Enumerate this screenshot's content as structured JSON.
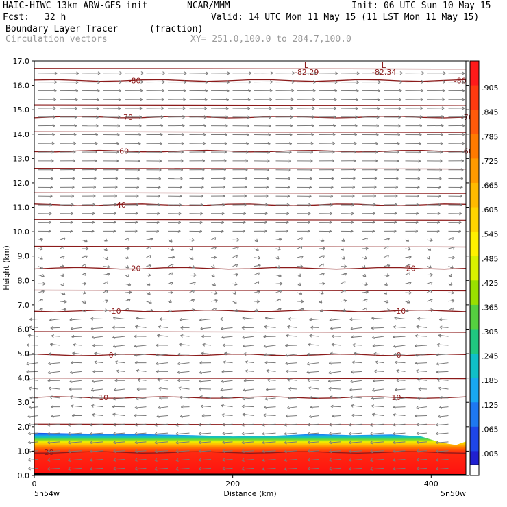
{
  "header": {
    "title_left": "HAIC-HIWC 13km ARW-GFS init",
    "org": "NCAR/MMM",
    "init": "Init: 06 UTC Sun 10 May 15",
    "fcst_label": "Fcst:",
    "fcst_value": "32 h",
    "valid": "Valid: 14 UTC Mon 11 May 15 (11 LST Mon 11 May 15)",
    "field_name": "Boundary Layer Tracer",
    "field_unit": "(fraction)",
    "vectors_label": "Circulation vectors",
    "xy_label": "XY= 251.0,100.0 to 284.7,100.0"
  },
  "chart_data": {
    "type": "area",
    "ylabel": "Height (km)",
    "xlabel": "Distance (km)",
    "ylim": [
      0,
      17
    ],
    "xlim": [
      0,
      435
    ],
    "y_ticks": [
      "0.0",
      "1.0",
      "2.0",
      "3.0",
      "4.0",
      "5.0",
      "6.0",
      "7.0",
      "8.0",
      "9.0",
      "10.0",
      "11.0",
      "12.0",
      "13.0",
      "14.0",
      "15.0",
      "16.0",
      "17.0"
    ],
    "x_ticks": [
      0,
      200,
      400
    ],
    "x_ticks_labels": [
      "0",
      "200",
      "400"
    ],
    "x_endpoints": [
      "5n54w",
      "5n50w"
    ],
    "tracer_top_km": [
      {
        "x": 0,
        "y": 1.75
      },
      {
        "x": 40,
        "y": 1.72
      },
      {
        "x": 100,
        "y": 1.7
      },
      {
        "x": 160,
        "y": 1.65
      },
      {
        "x": 200,
        "y": 1.6
      },
      {
        "x": 240,
        "y": 1.62
      },
      {
        "x": 280,
        "y": 1.7
      },
      {
        "x": 320,
        "y": 1.65
      },
      {
        "x": 360,
        "y": 1.68
      },
      {
        "x": 390,
        "y": 1.6
      },
      {
        "x": 410,
        "y": 1.35
      },
      {
        "x": 425,
        "y": 1.25
      },
      {
        "x": 435,
        "y": 1.4
      }
    ],
    "isotherms": [
      {
        "label": "20",
        "height_km": 0.95
      },
      {
        "label": "10",
        "height_km": 3.2
      },
      {
        "label": "0",
        "height_km": 4.95
      },
      {
        "label": "-10",
        "height_km": 6.75
      },
      {
        "label": "-20",
        "height_km": 8.5
      },
      {
        "label": "-40",
        "height_km": 11.1
      },
      {
        "label": "-60",
        "height_km": 13.3
      },
      {
        "label": "-70",
        "height_km": 14.7
      },
      {
        "label": "-80",
        "height_km": 16.2
      }
    ],
    "lows": [
      {
        "label": "L",
        "value": "-82.29",
        "x_km": 272
      },
      {
        "label": "L",
        "value": "-82.34",
        "x_km": 350
      }
    ],
    "colorbar": {
      "labels": [
        "-",
        ".905",
        ".845",
        ".785",
        ".725",
        ".665",
        ".605",
        ".545",
        ".485",
        ".425",
        ".365",
        ".305",
        ".245",
        ".185",
        ".125",
        ".065",
        ".005"
      ],
      "colors": [
        "#ff1a1a",
        "#ff3a10",
        "#ff5a0a",
        "#ff7a00",
        "#ff9a00",
        "#ffba00",
        "#ffd400",
        "#fff000",
        "#d8f000",
        "#9ae000",
        "#55d040",
        "#20c880",
        "#10c0c8",
        "#18a8f0",
        "#1e78f0",
        "#1e46e8",
        "#2020d0"
      ]
    }
  }
}
